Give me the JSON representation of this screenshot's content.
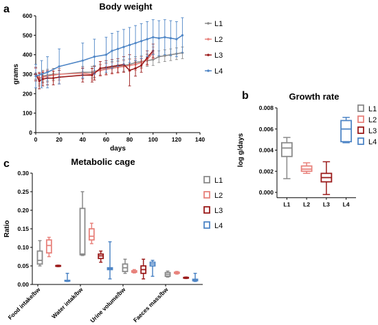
{
  "chart_data": [
    {
      "panel": "a",
      "type": "line",
      "title": "Body weight",
      "xlabel": "days",
      "ylabel": "grams",
      "xlim": [
        0,
        140
      ],
      "ylim": [
        0,
        600
      ],
      "xticks": [
        0,
        20,
        40,
        60,
        80,
        100,
        120,
        140
      ],
      "yticks": [
        0,
        100,
        200,
        300,
        400,
        500,
        600
      ],
      "legend": "right",
      "series": [
        {
          "name": "L1",
          "color": "#8a8a8a",
          "x": [
            0,
            3,
            6,
            10,
            15,
            20,
            40,
            48,
            50,
            55,
            60,
            65,
            70,
            75,
            80,
            85,
            90,
            95,
            100,
            105,
            110,
            115,
            120,
            125
          ],
          "y": [
            305,
            275,
            290,
            295,
            300,
            300,
            310,
            310,
            315,
            320,
            330,
            335,
            340,
            345,
            350,
            360,
            365,
            370,
            375,
            390,
            395,
            400,
            405,
            410
          ],
          "err": [
            30,
            35,
            30,
            30,
            30,
            30,
            30,
            30,
            30,
            30,
            30,
            30,
            30,
            30,
            30,
            30,
            30,
            30,
            30,
            30,
            30,
            30,
            30,
            30
          ]
        },
        {
          "name": "L2",
          "color": "#e8827c",
          "x": [
            0,
            3,
            6,
            10,
            15,
            20,
            40,
            48,
            50,
            55,
            60,
            65,
            70,
            75,
            80,
            85,
            90,
            95,
            100
          ],
          "y": [
            300,
            280,
            285,
            290,
            295,
            300,
            305,
            300,
            310,
            320,
            325,
            330,
            335,
            340,
            345,
            350,
            360,
            375,
            410
          ],
          "err": [
            30,
            30,
            30,
            30,
            30,
            30,
            30,
            30,
            30,
            30,
            30,
            30,
            30,
            30,
            30,
            30,
            30,
            30,
            30
          ]
        },
        {
          "name": "L3",
          "color": "#9b1b1b",
          "x": [
            0,
            3,
            6,
            10,
            15,
            20,
            40,
            48,
            50,
            55,
            60,
            65,
            70,
            75,
            80,
            85,
            90,
            95,
            100
          ],
          "y": [
            300,
            265,
            275,
            280,
            280,
            285,
            295,
            295,
            305,
            330,
            335,
            340,
            345,
            350,
            320,
            330,
            345,
            385,
            420
          ],
          "err": [
            35,
            40,
            35,
            35,
            35,
            35,
            35,
            35,
            35,
            35,
            35,
            35,
            35,
            40,
            80,
            40,
            35,
            35,
            35
          ]
        },
        {
          "name": "L4",
          "color": "#4f86c6",
          "x": [
            0,
            5,
            10,
            20,
            40,
            50,
            60,
            65,
            70,
            75,
            80,
            85,
            90,
            95,
            100,
            105,
            110,
            115,
            120,
            125
          ],
          "y": [
            290,
            300,
            310,
            340,
            370,
            390,
            400,
            420,
            430,
            440,
            450,
            460,
            470,
            480,
            490,
            485,
            490,
            485,
            480,
            500
          ],
          "err": [
            60,
            70,
            80,
            90,
            90,
            90,
            90,
            90,
            90,
            90,
            90,
            90,
            90,
            90,
            90,
            90,
            90,
            90,
            90,
            90
          ]
        }
      ]
    },
    {
      "panel": "b",
      "type": "box",
      "title": "Growth rate",
      "ylabel": "log g/days",
      "categories": [
        "L1",
        "L2",
        "L3",
        "L4"
      ],
      "ylim": [
        0,
        0.008
      ],
      "yticks": [
        "0.000",
        "0.002",
        "0.004",
        "0.006",
        "0.008"
      ],
      "legend": "right",
      "series": [
        {
          "name": "L1",
          "color": "#8a8a8a",
          "min": 0.0013,
          "q1": 0.0034,
          "median": 0.0042,
          "q3": 0.0047,
          "max": 0.0052
        },
        {
          "name": "L2",
          "color": "#e8827c",
          "min": 0.0018,
          "q1": 0.002,
          "median": 0.0022,
          "q3": 0.0025,
          "max": 0.0028
        },
        {
          "name": "L3",
          "color": "#9b1b1b",
          "min": -0.0002,
          "q1": 0.001,
          "median": 0.0014,
          "q3": 0.0018,
          "max": 0.0029
        },
        {
          "name": "L4",
          "color": "#4f86c6",
          "min": 0.0047,
          "q1": 0.0048,
          "median": 0.006,
          "q3": 0.0068,
          "max": 0.0071
        }
      ]
    },
    {
      "panel": "c",
      "type": "box",
      "title": "Metabolic cage",
      "ylabel": "Ratio",
      "categories": [
        "Food intake/bw",
        "Water intak/bw",
        "Urine volume/bw",
        "Faeces mass/bw"
      ],
      "ylim": [
        0,
        0.3
      ],
      "yticks": [
        "0.00",
        "0.05",
        "0.10",
        "0.15",
        "0.20",
        "0.25",
        "0.30"
      ],
      "legend": "right",
      "series": [
        {
          "name": "L1",
          "color": "#8a8a8a",
          "boxes": [
            {
              "min": 0.05,
              "q1": 0.055,
              "median": 0.065,
              "q3": 0.09,
              "max": 0.118
            },
            {
              "min": 0.078,
              "q1": 0.08,
              "median": 0.082,
              "q3": 0.205,
              "max": 0.25
            },
            {
              "min": 0.03,
              "q1": 0.035,
              "median": 0.045,
              "q3": 0.055,
              "max": 0.068
            },
            {
              "min": 0.02,
              "q1": 0.022,
              "median": 0.027,
              "q3": 0.032,
              "max": 0.036
            }
          ]
        },
        {
          "name": "L2",
          "color": "#e8827c",
          "boxes": [
            {
              "min": 0.075,
              "q1": 0.085,
              "median": 0.105,
              "q3": 0.12,
              "max": 0.127
            },
            {
              "min": 0.11,
              "q1": 0.12,
              "median": 0.13,
              "q3": 0.15,
              "max": 0.165
            },
            {
              "min": 0.031,
              "q1": 0.033,
              "median": 0.035,
              "q3": 0.037,
              "max": 0.04
            },
            {
              "min": 0.028,
              "q1": 0.03,
              "median": 0.031,
              "q3": 0.033,
              "max": 0.035
            }
          ]
        },
        {
          "name": "L3",
          "color": "#9b1b1b",
          "boxes": [
            {
              "min": 0.048,
              "q1": 0.049,
              "median": 0.05,
              "q3": 0.051,
              "max": 0.052
            },
            {
              "min": 0.06,
              "q1": 0.07,
              "median": 0.077,
              "q3": 0.082,
              "max": 0.09
            },
            {
              "min": 0.015,
              "q1": 0.03,
              "median": 0.04,
              "q3": 0.05,
              "max": 0.068
            },
            {
              "min": 0.016,
              "q1": 0.017,
              "median": 0.018,
              "q3": 0.019,
              "max": 0.02
            }
          ]
        },
        {
          "name": "L4",
          "color": "#4f86c6",
          "boxes": [
            {
              "min": 0.008,
              "q1": 0.009,
              "median": 0.01,
              "q3": 0.011,
              "max": 0.03
            },
            {
              "min": 0.015,
              "q1": 0.04,
              "median": 0.043,
              "q3": 0.045,
              "max": 0.115
            },
            {
              "min": 0.022,
              "q1": 0.05,
              "median": 0.055,
              "q3": 0.06,
              "max": 0.065
            },
            {
              "min": 0.008,
              "q1": 0.01,
              "median": 0.012,
              "q3": 0.014,
              "max": 0.03
            }
          ]
        }
      ]
    }
  ]
}
